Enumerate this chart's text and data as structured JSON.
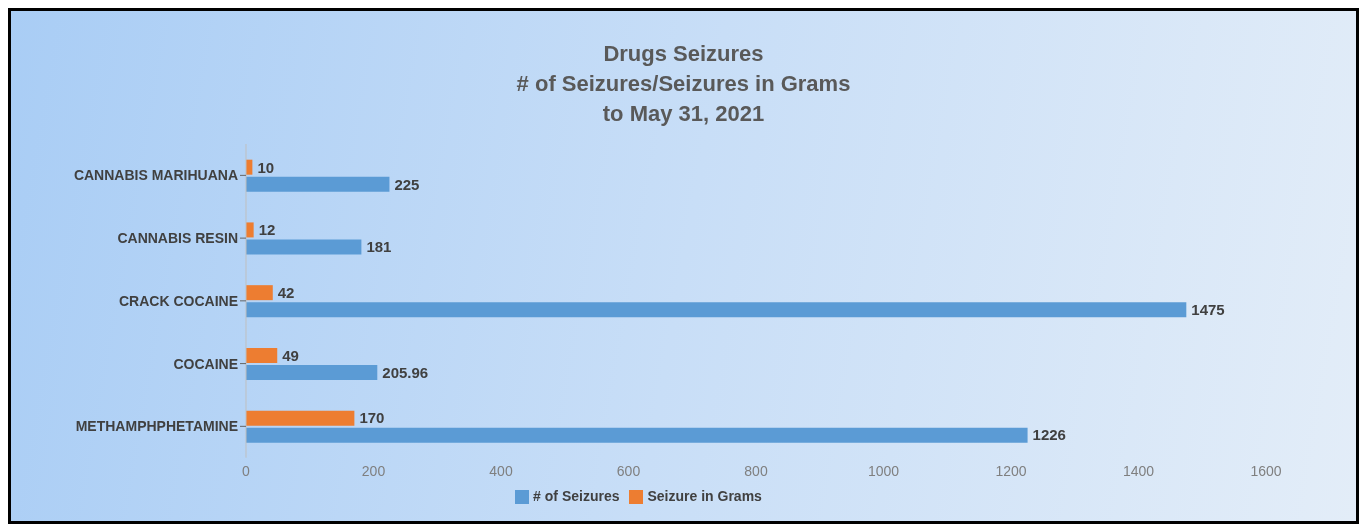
{
  "chart_data": {
    "type": "bar",
    "orientation": "horizontal",
    "title": "Drugs Seizures",
    "subtitle": "# of Seizures/Seizures in Grams\nto May 31, 2021",
    "categories": [
      "CANNABIS MARIHUANA",
      "CANNABIS RESIN",
      "CRACK COCAINE",
      "COCAINE",
      "METHAMPHPHETAMINE"
    ],
    "series": [
      {
        "name": "Seizure in Grams",
        "color": "#ed7d31",
        "values": [
          10,
          12,
          42,
          49,
          170
        ]
      },
      {
        "name": "# of Seizures",
        "color": "#5b9bd5",
        "values": [
          225,
          181,
          1475,
          205.96,
          1226
        ]
      }
    ],
    "xlim": [
      0,
      1600
    ],
    "xticks": [
      0,
      200,
      400,
      600,
      800,
      1000,
      1200,
      1400,
      1600
    ],
    "data_labels": true,
    "grid": false,
    "legend": "bottom"
  }
}
